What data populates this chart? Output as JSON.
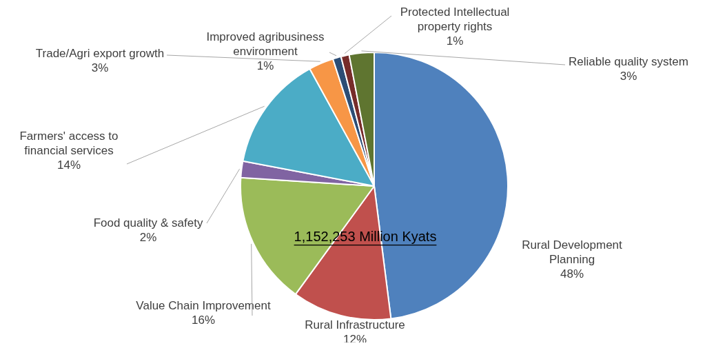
{
  "chart_data": {
    "type": "pie",
    "categories": [
      "Rural Development Planning",
      "Rural Infrastructure",
      "Value Chain Improvement",
      "Food quality & safety",
      "Farmers' access to financial services",
      "Trade/Agri export growth",
      "Improved agribusiness environment",
      "Protected Intellectual property rights",
      "Reliable quality system"
    ],
    "values": [
      48,
      12,
      16,
      2,
      14,
      3,
      1,
      1,
      3
    ],
    "colors": [
      "#4f81bd",
      "#c0504d",
      "#9bbb59",
      "#8064a2",
      "#4bacc6",
      "#f79646",
      "#2c4d75",
      "#772c2a",
      "#5f7530"
    ],
    "value_labels": [
      "48%",
      "12%",
      "16%",
      "2%",
      "14%",
      "3%",
      "1%",
      "1%",
      "3%"
    ],
    "annotations": [
      "1,152,253 Million Kyats"
    ],
    "legend": false
  }
}
